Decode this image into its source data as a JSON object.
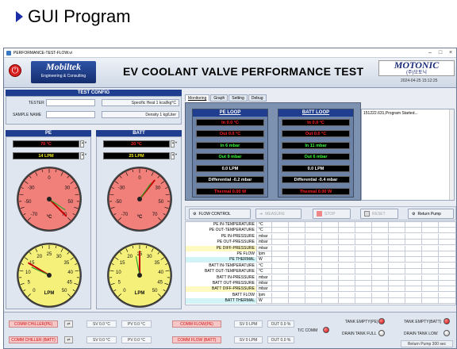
{
  "slide": {
    "title": "GUI Program"
  },
  "window": {
    "title": "PERFORMANCE-TEST-FLOW.vi"
  },
  "header": {
    "power_symbol": "⏻",
    "logo_left_main": "Mobiltek",
    "logo_left_sub": "Engineering & Consulting",
    "title": "EV COOLANT VALVE PERFORMANCE TEST",
    "logo_right_main": "MOTONIC",
    "logo_right_sub": "(주)모토닉",
    "timestamp": "2024-04-25 15:12:25"
  },
  "test_config": {
    "header": "TEST CONFIG",
    "tester_label": "TESTER",
    "tester_value": "",
    "sample_name_label": "SAMPLE NAME",
    "sample_name_value": "",
    "specific_heat_label": "Specific Heat 1 kcal/kg°C",
    "density_label": "Density 1 kg/Liter"
  },
  "pe": {
    "header": "PE",
    "temp": "70 °C",
    "flow": "14 LPM"
  },
  "batt": {
    "header": "BATT",
    "temp": "20 °C",
    "flow": "25 LPM"
  },
  "gauges": {
    "temp_unit": "°C",
    "flow_unit": "LPM",
    "temp_ticks": [
      "-70",
      "-50",
      "-30",
      "0",
      "30",
      "50",
      "70"
    ],
    "flow_ticks": [
      "0",
      "5",
      "10",
      "15",
      "20",
      "25",
      "30",
      "35",
      "40",
      "45",
      "50"
    ],
    "pe_temp_value": 70,
    "batt_temp_value": 20,
    "pe_flow_value": 14,
    "batt_flow_value": 25
  },
  "tabs": [
    "Monitoring",
    "Graph",
    "Setting",
    "Debug"
  ],
  "pe_loop": {
    "header": "PE LOOP",
    "in_temp": "In 0.0 °C",
    "out_temp": "Out 0.0 °C",
    "in_pressure": "In 6 mbar",
    "out_pressure": "Out 9 mbar",
    "flow": "0.0 LPM",
    "differential": "Differential -0.2 mbar",
    "thermal": "Thermal 0.00 W"
  },
  "batt_loop": {
    "header": "BATT LOOP",
    "in_temp": "In 0.0 °C",
    "out_temp": "Out 0.0 °C",
    "in_pressure": "In 11 mbar",
    "out_pressure": "Out 6 mbar",
    "flow": "0.0 LPM",
    "differential": "Differential -0.4 mbar",
    "thermal": "Thermal 0.00 W"
  },
  "log": {
    "line1": "151222.631,Program Started..."
  },
  "controls": {
    "flow_control": "FLOW CONTROL",
    "measure": "MEASURE",
    "stop": "STOP",
    "reset": "RESET",
    "return_pump": "Return Pump"
  },
  "table_rows": [
    {
      "name": "PE IN-TEMPERATURE",
      "unit": "°C",
      "color": "#ffffff"
    },
    {
      "name": "PE OUT-TEMPERATURE",
      "unit": "°C",
      "color": "#ffffff"
    },
    {
      "name": "PE IN-PRESSURE",
      "unit": "mbar",
      "color": "#ffffff"
    },
    {
      "name": "PE OUT-PRESSURE",
      "unit": "mbar",
      "color": "#ffffff"
    },
    {
      "name": "PE DIFF-PRESSURE",
      "unit": "mbar",
      "color": "#fffac2"
    },
    {
      "name": "PE FLOW",
      "unit": "lpm",
      "color": "#ffffff"
    },
    {
      "name": "PE THERMAL",
      "unit": "W",
      "color": "#d2f4f6"
    },
    {
      "name": "BATT IN-TEMPERATURE",
      "unit": "°C",
      "color": "#ffffff"
    },
    {
      "name": "BATT OUT-TEMPERATURE",
      "unit": "°C",
      "color": "#ffffff"
    },
    {
      "name": "BATT IN-PRESSURE",
      "unit": "mbar",
      "color": "#ffffff"
    },
    {
      "name": "BATT OUT-PRESSURE",
      "unit": "mbar",
      "color": "#ffffff"
    },
    {
      "name": "BATT DIFF-PRESSURE",
      "unit": "mbar",
      "color": "#fffac2"
    },
    {
      "name": "BATT FLOW",
      "unit": "lpm",
      "color": "#ffffff"
    },
    {
      "name": "BATT THERMAL",
      "unit": "W",
      "color": "#d2f4f6"
    }
  ],
  "bottom": {
    "comm_chiller_pe": "COMM CHILLER(PE)",
    "comm_chiller_batt": "COMM CHILLER (BATT)",
    "sv_pe": "SV 0.0 °C",
    "pv_pe": "PV 0.0 °C",
    "sv_batt": "SV 0.0 °C",
    "pv_batt": "PV 0.0 °C",
    "comm_flow_pe": "COMM FLOW(PE)",
    "comm_flow_batt": "COMM FLOW (BATT)",
    "flow_sv_pe": "SV 0 LPM",
    "flow_out_pe": "OUT 0.0 %",
    "flow_sv_batt": "SV 0 LPM",
    "flow_out_batt": "OUT 0.0 %",
    "tc_comm": "T/C COMM",
    "tank_empty_pe": "TANK EMPTY(PE)",
    "drain_tank_full": "DRAIN TANK FULL",
    "tank_empty_batt": "TANK EMPTY(BATT)",
    "drain_tank_low": "DRAIN TANK LOW",
    "return_pump_status": "Return Pump 300 sec"
  }
}
